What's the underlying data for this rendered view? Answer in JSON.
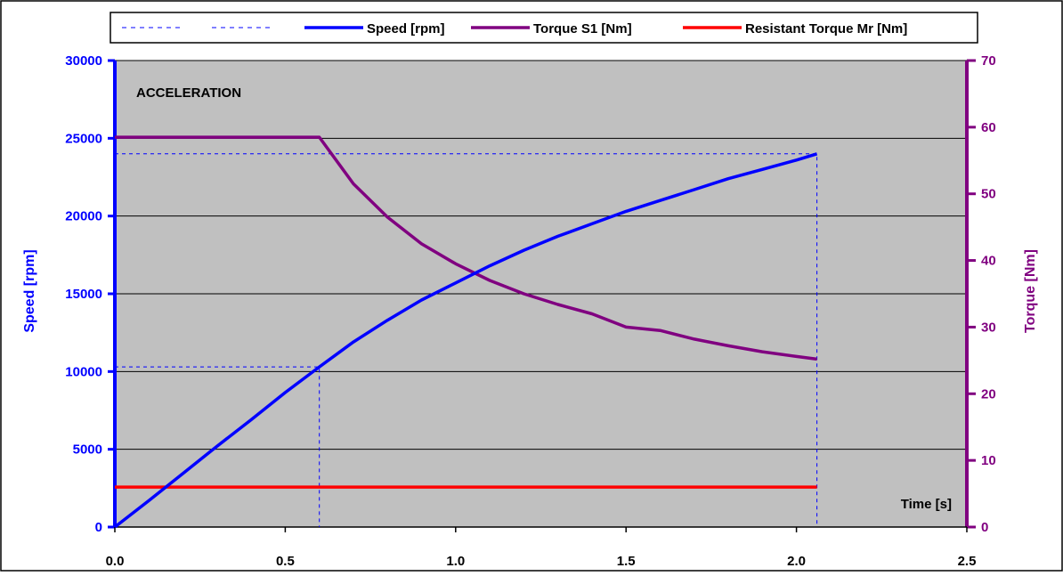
{
  "chart_data": {
    "type": "line",
    "annotation": "ACCELERATION",
    "xlabel": "Time [s]",
    "ylabel_left": "Speed [rpm]",
    "ylabel_right": "Torque [Nm]",
    "xlim": [
      0,
      2.5
    ],
    "ylim_left": [
      0,
      30000
    ],
    "ylim_right": [
      0,
      70
    ],
    "x_ticks": [
      "0.0",
      "0.5",
      "1.0",
      "1.5",
      "2.0",
      "2.5"
    ],
    "y_left_ticks": [
      "0",
      "5000",
      "10000",
      "15000",
      "20000",
      "25000",
      "30000"
    ],
    "y_right_ticks": [
      "0",
      "10",
      "20",
      "30",
      "40",
      "50",
      "60",
      "70"
    ],
    "grid": "horizontal",
    "legend_position": "top",
    "background_color": "#c0c0c0",
    "series": [
      {
        "name": "Speed [rpm]",
        "axis": "left",
        "color": "#0000ff",
        "style": "solid",
        "x": [
          0.0,
          0.1,
          0.2,
          0.3,
          0.4,
          0.5,
          0.6,
          0.7,
          0.8,
          0.9,
          1.0,
          1.1,
          1.2,
          1.3,
          1.4,
          1.5,
          1.6,
          1.7,
          1.8,
          1.9,
          2.0,
          2.06
        ],
        "y": [
          0,
          1700,
          3450,
          5200,
          6900,
          8650,
          10300,
          11900,
          13300,
          14600,
          15700,
          16800,
          17800,
          18700,
          19500,
          20300,
          21000,
          21700,
          22400,
          23000,
          23600,
          24000
        ]
      },
      {
        "name": "Torque S1 [Nm]",
        "axis": "right",
        "color": "#800080",
        "style": "solid",
        "x": [
          0.0,
          0.6,
          0.7,
          0.8,
          0.9,
          1.0,
          1.1,
          1.2,
          1.3,
          1.4,
          1.5,
          1.6,
          1.7,
          1.8,
          1.9,
          2.0,
          2.06
        ],
        "y": [
          58.5,
          58.5,
          51.5,
          46.5,
          42.5,
          39.5,
          37.0,
          35.0,
          33.4,
          32.0,
          30.0,
          29.5,
          28.2,
          27.2,
          26.3,
          25.6,
          25.2
        ]
      },
      {
        "name": "Resistant Torque Mr [Nm]",
        "axis": "right",
        "color": "#ff0000",
        "style": "solid",
        "x": [
          0.0,
          2.06
        ],
        "y": [
          6.0,
          6.0
        ]
      },
      {
        "name": "",
        "axis": "left",
        "color": "#0000ff",
        "style": "dashed",
        "x": [
          0.0,
          0.6,
          0.6
        ],
        "y": [
          10300,
          10300,
          0
        ]
      },
      {
        "name": "",
        "axis": "left",
        "color": "#0000ff",
        "style": "dashed",
        "x": [
          0.0,
          2.06,
          2.06
        ],
        "y": [
          24000,
          24000,
          0
        ]
      }
    ]
  }
}
